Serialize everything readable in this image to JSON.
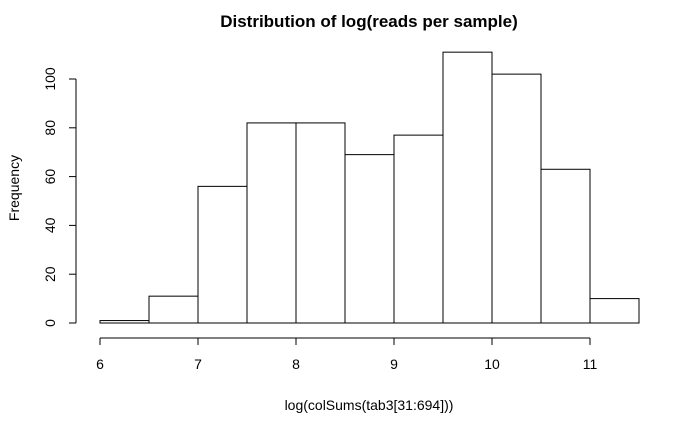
{
  "chart_data": {
    "type": "bar",
    "title": "Distribution of log(reads per sample)",
    "xlabel": "log(colSums(tab3[31:694]))",
    "ylabel": "Frequency",
    "bins": [
      {
        "x0": 6.0,
        "x1": 6.5,
        "count": 1
      },
      {
        "x0": 6.5,
        "x1": 7.0,
        "count": 11
      },
      {
        "x0": 7.0,
        "x1": 7.5,
        "count": 56
      },
      {
        "x0": 7.5,
        "x1": 8.0,
        "count": 82
      },
      {
        "x0": 8.0,
        "x1": 8.5,
        "count": 82
      },
      {
        "x0": 8.5,
        "x1": 9.0,
        "count": 69
      },
      {
        "x0": 9.0,
        "x1": 9.5,
        "count": 77
      },
      {
        "x0": 9.5,
        "x1": 10.0,
        "count": 111
      },
      {
        "x0": 10.0,
        "x1": 10.5,
        "count": 102
      },
      {
        "x0": 10.5,
        "x1": 11.0,
        "count": 63
      },
      {
        "x0": 11.0,
        "x1": 11.5,
        "count": 10
      }
    ],
    "xticks": [
      6,
      7,
      8,
      9,
      10,
      11
    ],
    "yticks": [
      0,
      20,
      40,
      60,
      80,
      100
    ],
    "xlim": [
      6,
      11.5
    ],
    "ylim": [
      0,
      111
    ],
    "grid": false,
    "legend": "none"
  }
}
